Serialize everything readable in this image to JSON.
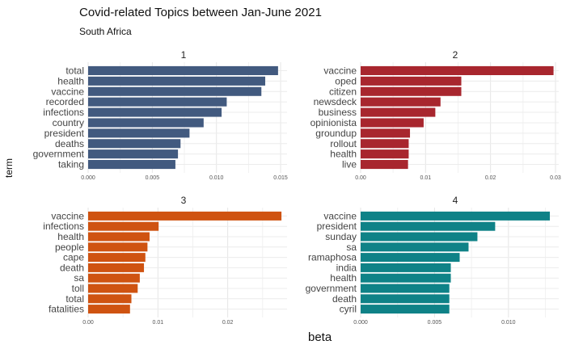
{
  "title": "Covid-related Topics between Jan-June 2021",
  "subtitle": "South Africa",
  "chart_data": {
    "type": "bar",
    "orientation": "horizontal",
    "facet_layout": "2x2",
    "xlabel": "beta",
    "ylabel": "term",
    "grid": true,
    "panels": [
      {
        "label": "1",
        "color": "#425a7f",
        "xlim": [
          0,
          0.0155
        ],
        "ticks": [
          0,
          0.005,
          0.01,
          0.015
        ],
        "tick_labels": [
          "0.000",
          "0.005",
          "0.010",
          "0.015"
        ],
        "terms": [
          "total",
          "health",
          "vaccine",
          "recorded",
          "infections",
          "country",
          "president",
          "deaths",
          "government",
          "taking"
        ],
        "values": [
          0.0148,
          0.0138,
          0.0135,
          0.0108,
          0.0104,
          0.009,
          0.0079,
          0.0072,
          0.007,
          0.0068
        ]
      },
      {
        "label": "2",
        "color": "#a8262e",
        "xlim": [
          0,
          0.0305
        ],
        "ticks": [
          0,
          0.01,
          0.02,
          0.03
        ],
        "tick_labels": [
          "0.00",
          "0.01",
          "0.02",
          "0.03"
        ],
        "terms": [
          "vaccine",
          "oped",
          "citizen",
          "newsdeck",
          "business",
          "opinionista",
          "groundup",
          "rollout",
          "health",
          "live"
        ],
        "values": [
          0.0297,
          0.0155,
          0.0155,
          0.0123,
          0.0115,
          0.0097,
          0.0076,
          0.0074,
          0.0074,
          0.0073
        ]
      },
      {
        "label": "3",
        "color": "#cf5311",
        "xlim": [
          0,
          0.0285
        ],
        "ticks": [
          0,
          0.01,
          0.02
        ],
        "tick_labels": [
          "0.00",
          "0.01",
          "0.02"
        ],
        "terms": [
          "vaccine",
          "infections",
          "health",
          "people",
          "cape",
          "death",
          "sa",
          "toll",
          "total",
          "fatalities"
        ],
        "values": [
          0.0277,
          0.0101,
          0.0088,
          0.0085,
          0.0082,
          0.008,
          0.0074,
          0.0071,
          0.0062,
          0.006
        ]
      },
      {
        "label": "4",
        "color": "#0f8287",
        "xlim": [
          0,
          0.0134
        ],
        "ticks": [
          0,
          0.005,
          0.01
        ],
        "tick_labels": [
          "0.000",
          "0.005",
          "0.010"
        ],
        "terms": [
          "vaccine",
          "president",
          "sunday",
          "sa",
          "ramaphosa",
          "india",
          "health",
          "government",
          "death",
          "cyril"
        ],
        "values": [
          0.0128,
          0.0091,
          0.0079,
          0.0073,
          0.0067,
          0.0061,
          0.0061,
          0.006,
          0.006,
          0.006
        ]
      }
    ]
  }
}
